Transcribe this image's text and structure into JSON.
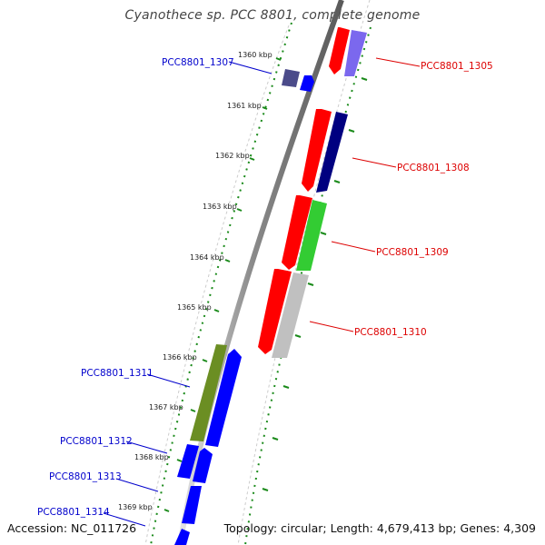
{
  "title": "Cyanothece sp. PCC 8801, complete genome",
  "accession": "Accession: NC_011726",
  "topology": "Topology: circular; Length: 4,679,413 bp; Genes: 4,309",
  "colors": {
    "backbone": "#8a8a8a",
    "dot_track": "#1a8a1a",
    "tick": "#1a8a1a",
    "label_left": "#0000cc",
    "label_right": "#dd0000",
    "red": "#ff0000",
    "blue": "#0000ff",
    "navy": "#000080",
    "lavender": "#7b68ee",
    "green": "#33cc33",
    "olive": "#6b8e23",
    "gray": "#c0c0c0"
  },
  "ticks": [
    {
      "label": "1360 kbp",
      "kbp": 1360
    },
    {
      "label": "1361 kbp",
      "kbp": 1361
    },
    {
      "label": "1362 kbp",
      "kbp": 1362
    },
    {
      "label": "1363 kbp",
      "kbp": 1363
    },
    {
      "label": "1364 kbp",
      "kbp": 1364
    },
    {
      "label": "1365 kbp",
      "kbp": 1365
    },
    {
      "label": "1366 kbp",
      "kbp": 1366
    },
    {
      "label": "1367 kbp",
      "kbp": 1367
    },
    {
      "label": "1368 kbp",
      "kbp": 1368
    },
    {
      "label": "1369 kbp",
      "kbp": 1369
    }
  ],
  "genes": [
    {
      "id": "gene-1305",
      "label": "PCC8801_1305",
      "side": "right"
    },
    {
      "id": "gene-1307",
      "label": "PCC8801_1307",
      "side": "left"
    },
    {
      "id": "gene-1308",
      "label": "PCC8801_1308",
      "side": "right"
    },
    {
      "id": "gene-1309",
      "label": "PCC8801_1309",
      "side": "right"
    },
    {
      "id": "gene-1310",
      "label": "PCC8801_1310",
      "side": "right"
    },
    {
      "id": "gene-1311",
      "label": "PCC8801_1311",
      "side": "left"
    },
    {
      "id": "gene-1312",
      "label": "PCC8801_1312",
      "side": "left"
    },
    {
      "id": "gene-1313",
      "label": "PCC8801_1313",
      "side": "left"
    },
    {
      "id": "gene-1314",
      "label": "PCC8801_1314",
      "side": "left"
    }
  ]
}
